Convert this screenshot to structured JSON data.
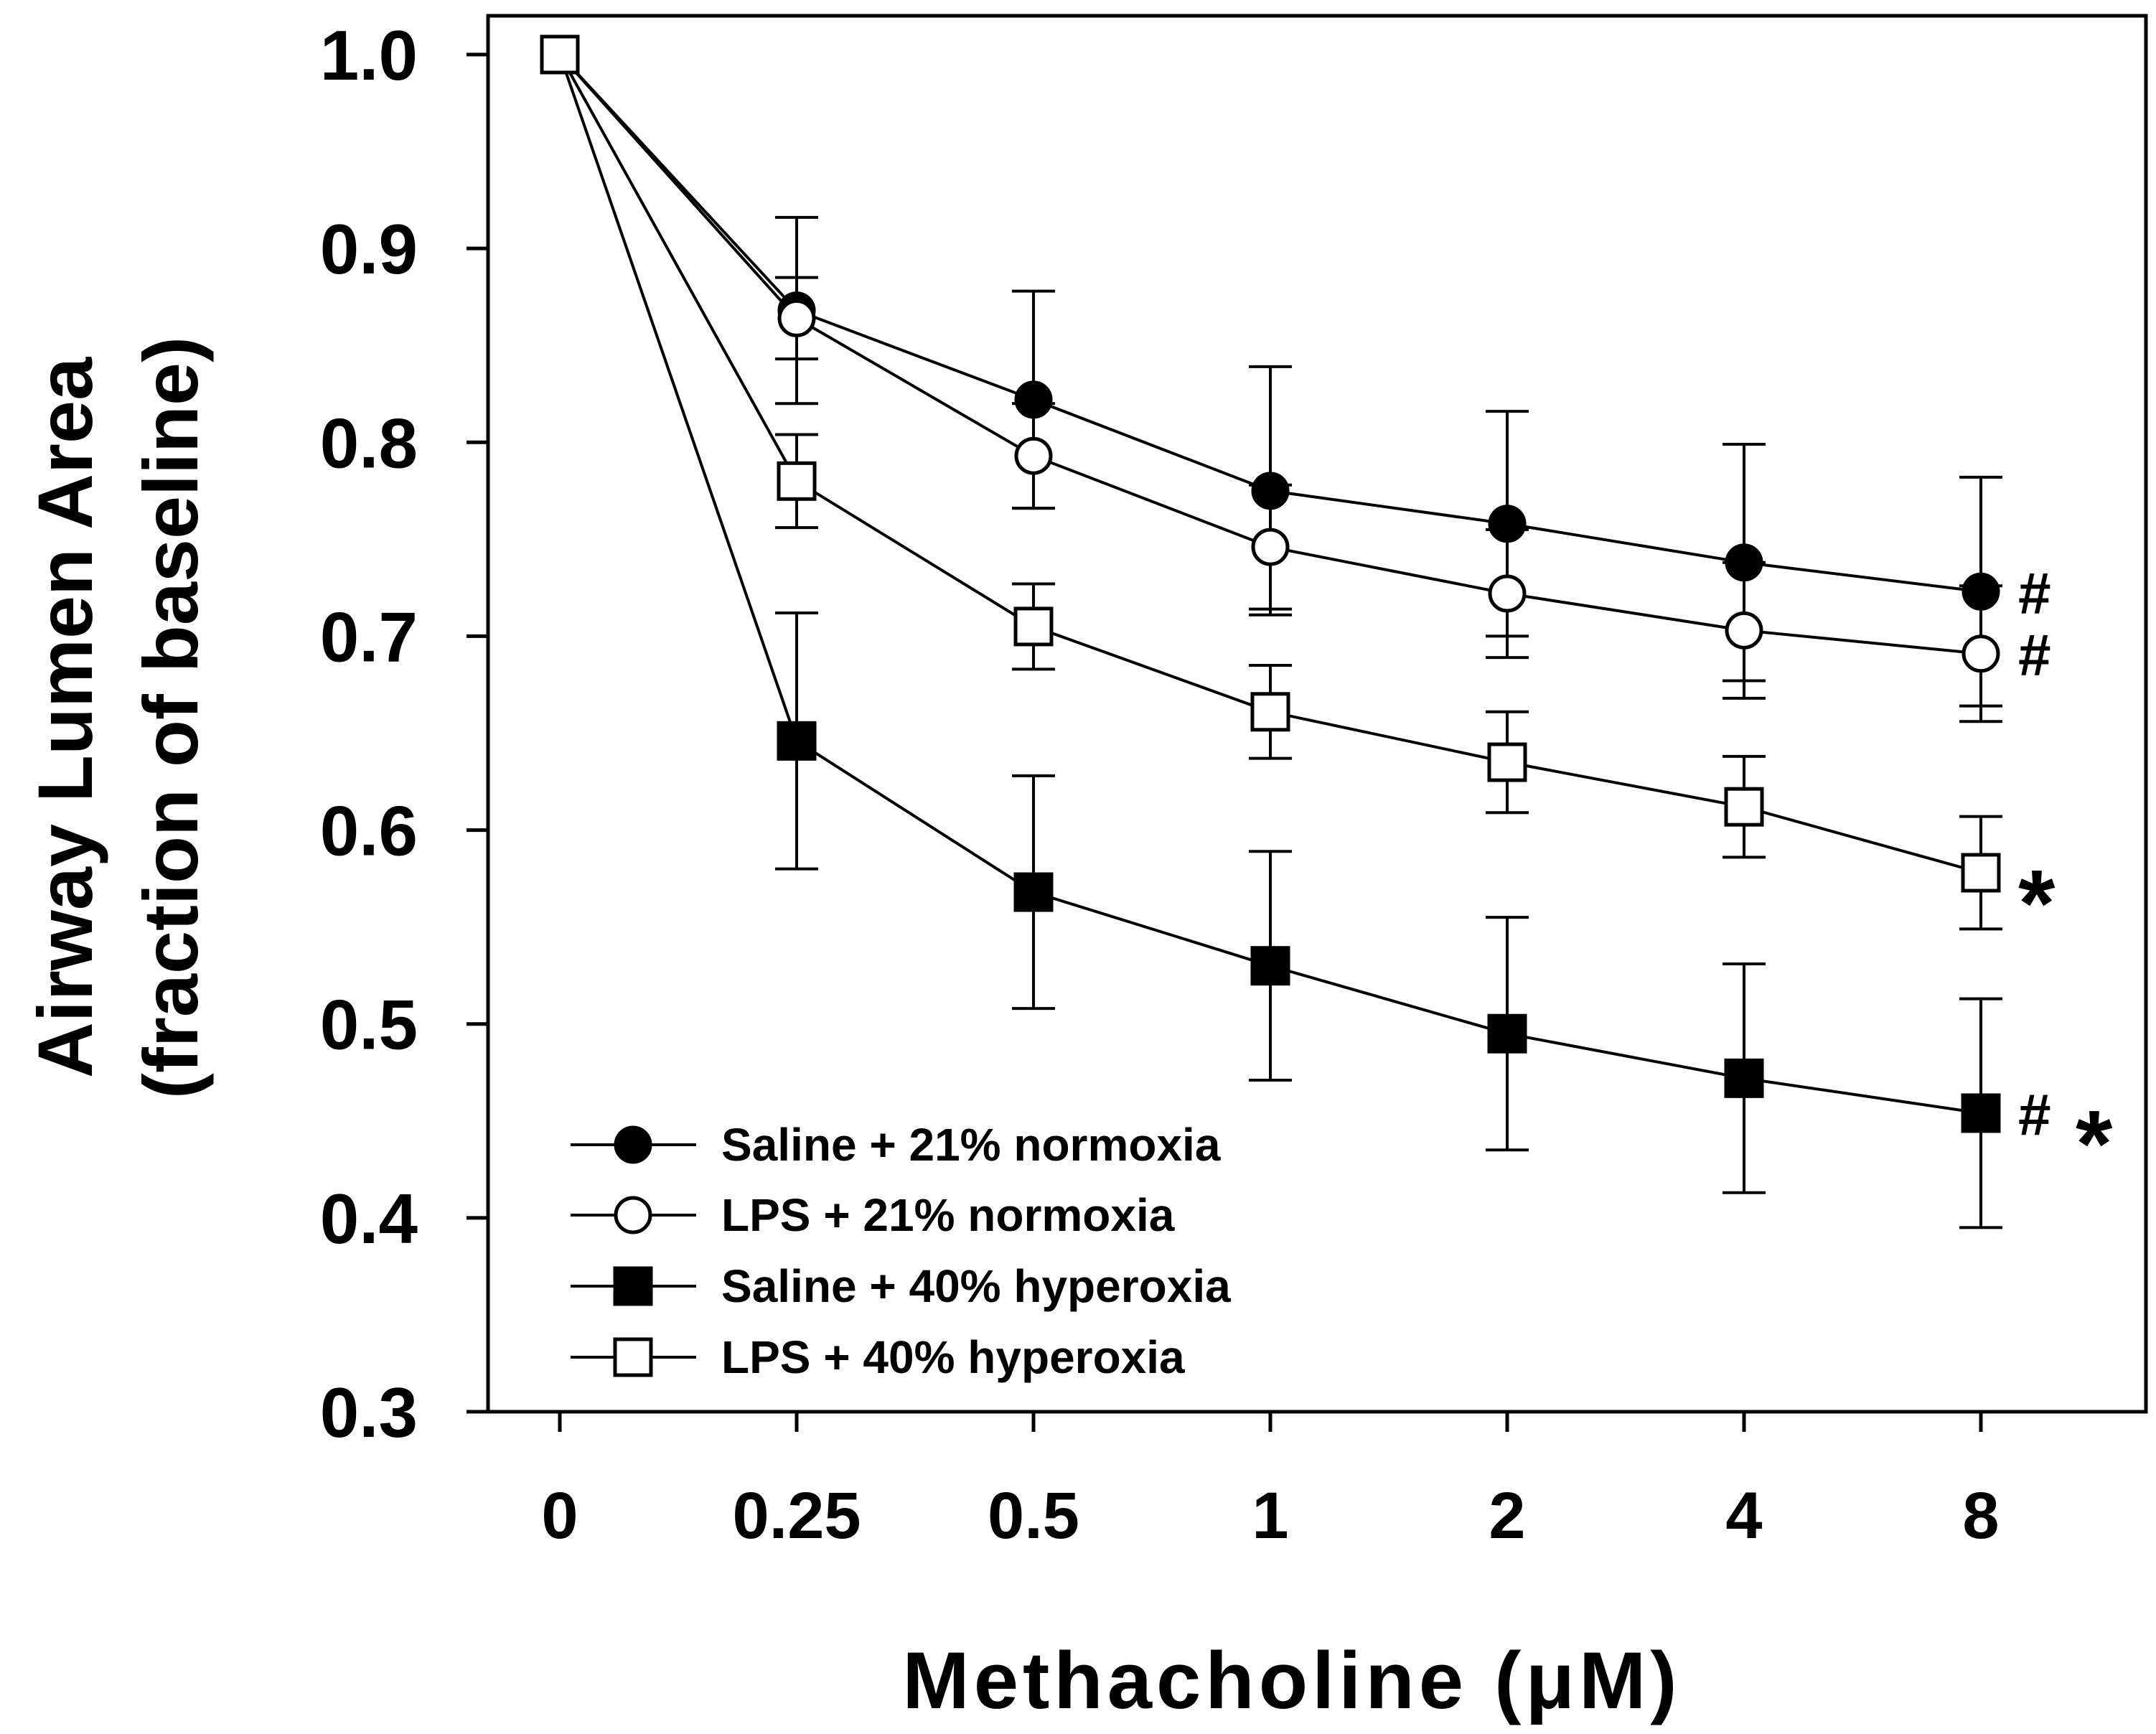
{
  "chart_data": {
    "type": "line",
    "title": "",
    "xlabel": "Methacholine (μM)",
    "ylabel": [
      "Airway Lumen Area",
      "(fraction of baseline)"
    ],
    "categories": [
      "0",
      "0.25",
      "0.5",
      "1",
      "2",
      "4",
      "8"
    ],
    "ylim": [
      0.3,
      1.0
    ],
    "yticks": [
      "0.3",
      "0.4",
      "0.5",
      "0.6",
      "0.7",
      "0.8",
      "0.9",
      "1.0"
    ],
    "grid": false,
    "legend_position": "bottom-left",
    "series": [
      {
        "name": "Saline + 21% normoxia",
        "marker": "circle",
        "filled": true,
        "values": [
          1.0,
          0.868,
          0.822,
          0.775,
          0.758,
          0.738,
          0.723
        ],
        "errors": [
          0,
          0.048,
          0.056,
          0.064,
          0.058,
          0.061,
          0.059
        ],
        "annotation": "#"
      },
      {
        "name": "LPS + 21% normoxia",
        "marker": "circle",
        "filled": false,
        "values": [
          1.0,
          0.864,
          0.793,
          0.746,
          0.722,
          0.703,
          0.691
        ],
        "errors": [
          0,
          0.021,
          0.027,
          0.032,
          0.033,
          0.035,
          0.035
        ],
        "annotation": "#"
      },
      {
        "name": "Saline + 40% hyperoxia",
        "marker": "square",
        "filled": true,
        "values": [
          1.0,
          0.646,
          0.568,
          0.53,
          0.495,
          0.472,
          0.454
        ],
        "errors": [
          0,
          0.066,
          0.06,
          0.059,
          0.06,
          0.059,
          0.059
        ],
        "annotation": "#*"
      },
      {
        "name": "LPS + 40% hyperoxia",
        "marker": "square",
        "filled": false,
        "values": [
          1.0,
          0.78,
          0.705,
          0.661,
          0.635,
          0.612,
          0.578
        ],
        "errors": [
          0,
          0.024,
          0.022,
          0.024,
          0.026,
          0.026,
          0.029
        ],
        "annotation": "*"
      }
    ]
  }
}
